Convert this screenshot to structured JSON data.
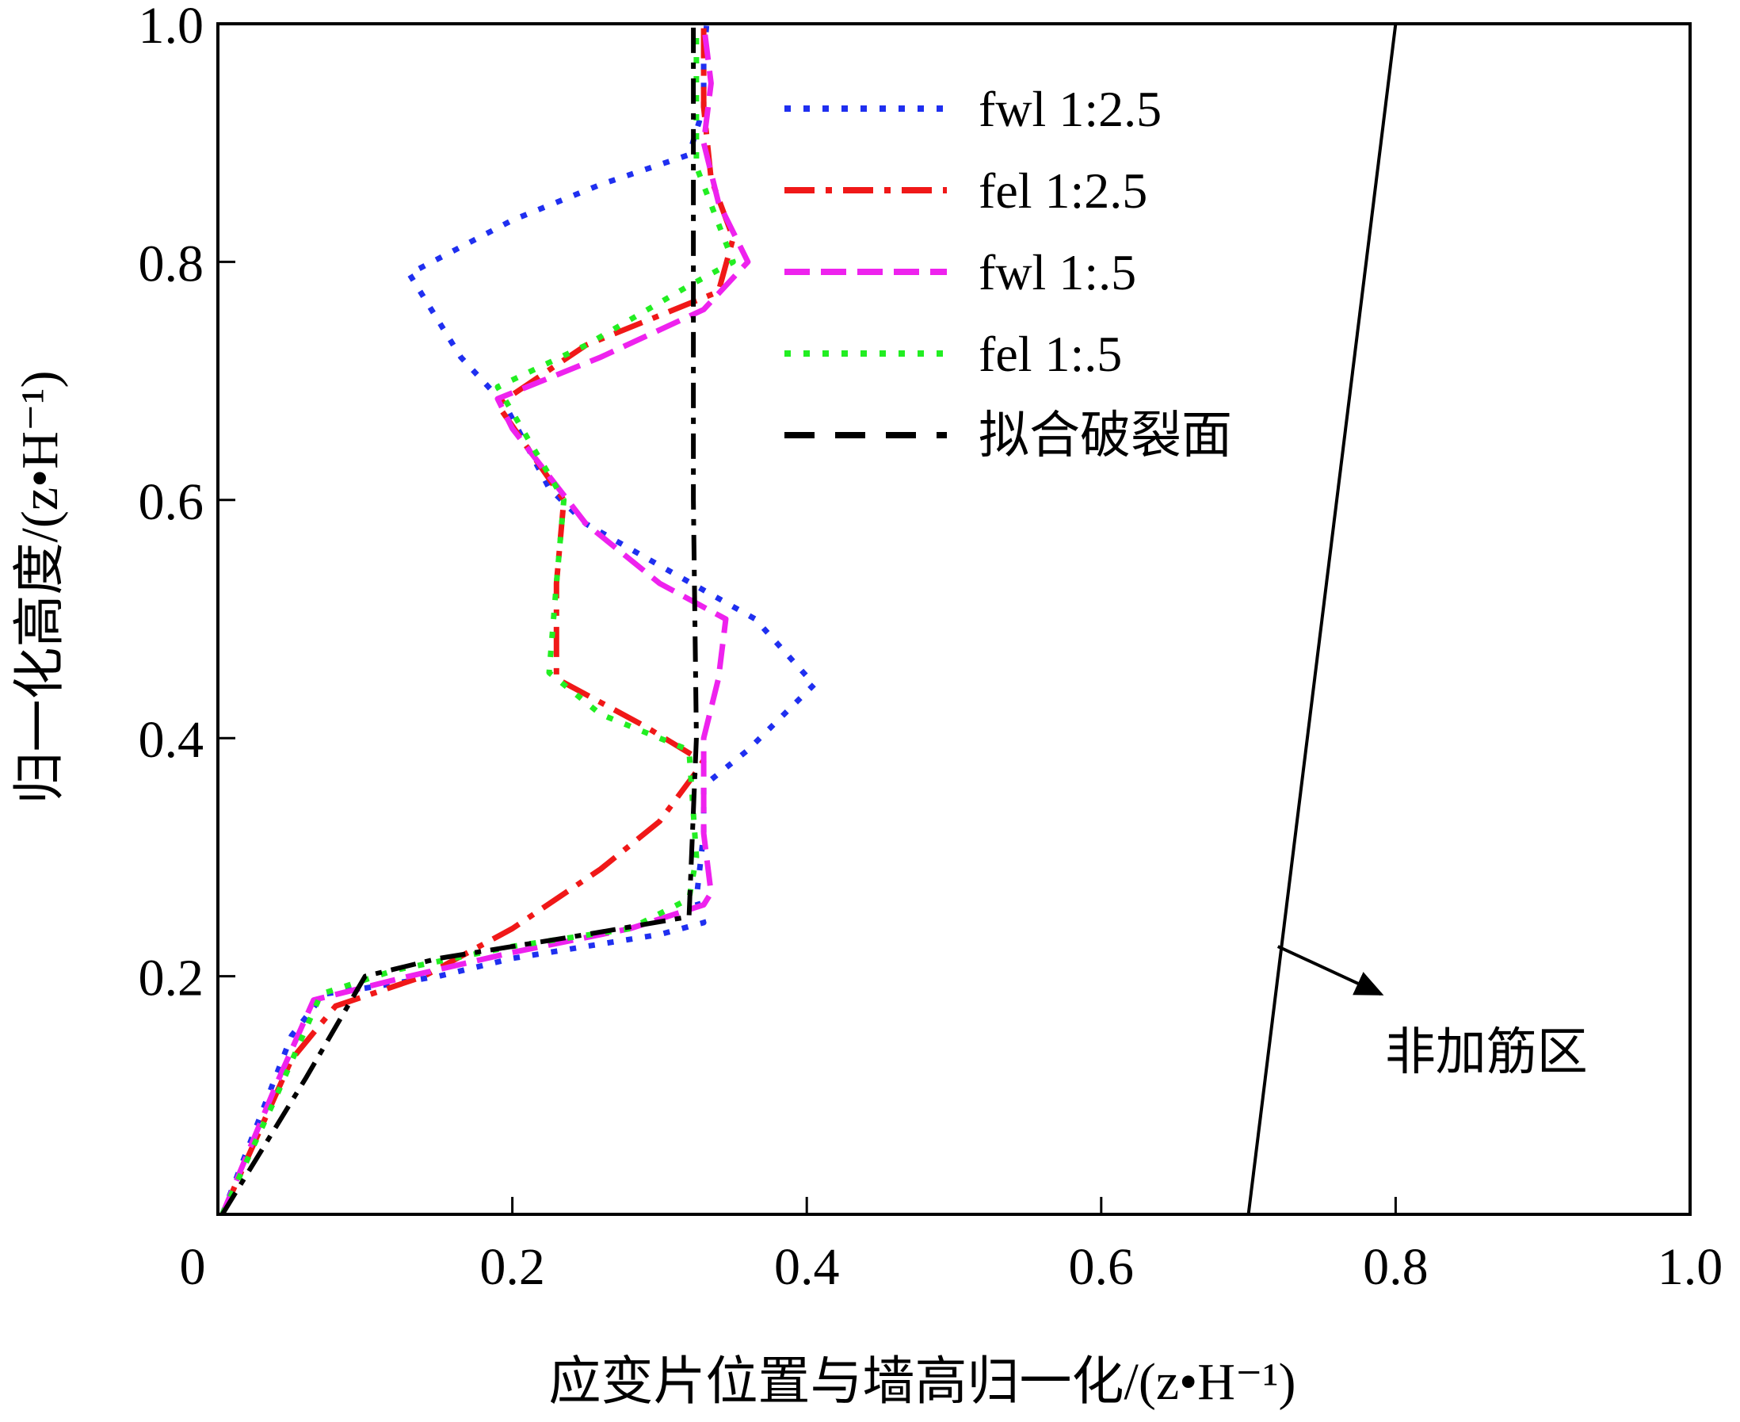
{
  "chart_data": {
    "type": "line",
    "title": "",
    "xlabel": "应变片位置与墙高归一化/(z•H⁻¹)",
    "ylabel": "归一化高度/(z•H⁻¹)",
    "xlim": [
      0,
      1.0
    ],
    "ylim": [
      0,
      1.0
    ],
    "x_ticks": [
      {
        "value": 0,
        "label": "0"
      },
      {
        "value": 0.2,
        "label": "0.2"
      },
      {
        "value": 0.4,
        "label": "0.4"
      },
      {
        "value": 0.6,
        "label": "0.6"
      },
      {
        "value": 0.8,
        "label": "0.8"
      },
      {
        "value": 1.0,
        "label": "1.0"
      }
    ],
    "y_ticks": [
      {
        "value": 0.2,
        "label": "0.2"
      },
      {
        "value": 0.4,
        "label": "0.4"
      },
      {
        "value": 0.6,
        "label": "0.6"
      },
      {
        "value": 0.8,
        "label": "0.8"
      },
      {
        "value": 1.0,
        "label": "1.0"
      }
    ],
    "grid": false,
    "legend_position": "top-center",
    "series": [
      {
        "name": "fwl 1:2.5",
        "color": "#1f2ff0",
        "dash": "dotted",
        "points": [
          [
            0.003,
            0.0
          ],
          [
            0.05,
            0.15
          ],
          [
            0.072,
            0.185
          ],
          [
            0.1,
            0.19
          ],
          [
            0.15,
            0.2
          ],
          [
            0.2,
            0.215
          ],
          [
            0.25,
            0.225
          ],
          [
            0.3,
            0.235
          ],
          [
            0.33,
            0.245
          ],
          [
            0.325,
            0.265
          ],
          [
            0.33,
            0.32
          ],
          [
            0.33,
            0.36
          ],
          [
            0.36,
            0.39
          ],
          [
            0.405,
            0.445
          ],
          [
            0.365,
            0.5
          ],
          [
            0.3,
            0.545
          ],
          [
            0.25,
            0.58
          ],
          [
            0.225,
            0.61
          ],
          [
            0.195,
            0.68
          ],
          [
            0.165,
            0.72
          ],
          [
            0.13,
            0.79
          ],
          [
            0.2,
            0.835
          ],
          [
            0.26,
            0.865
          ],
          [
            0.32,
            0.89
          ],
          [
            0.33,
            0.93
          ],
          [
            0.33,
            0.97
          ],
          [
            0.332,
            1.0
          ]
        ]
      },
      {
        "name": "fel 1:2.5",
        "color": "#f01818",
        "dash": "dashdot",
        "points": [
          [
            0.003,
            0.0
          ],
          [
            0.05,
            0.13
          ],
          [
            0.08,
            0.175
          ],
          [
            0.14,
            0.2
          ],
          [
            0.2,
            0.24
          ],
          [
            0.26,
            0.29
          ],
          [
            0.3,
            0.33
          ],
          [
            0.33,
            0.38
          ],
          [
            0.29,
            0.41
          ],
          [
            0.23,
            0.45
          ],
          [
            0.23,
            0.53
          ],
          [
            0.235,
            0.6
          ],
          [
            0.19,
            0.68
          ],
          [
            0.25,
            0.73
          ],
          [
            0.34,
            0.775
          ],
          [
            0.35,
            0.82
          ],
          [
            0.335,
            0.87
          ],
          [
            0.33,
            0.93
          ],
          [
            0.33,
            1.0
          ]
        ]
      },
      {
        "name": "fwl 1:.5",
        "color": "#ee22ee",
        "dash": "dashed",
        "points": [
          [
            0.003,
            0.0
          ],
          [
            0.04,
            0.11
          ],
          [
            0.065,
            0.18
          ],
          [
            0.13,
            0.2
          ],
          [
            0.2,
            0.22
          ],
          [
            0.28,
            0.24
          ],
          [
            0.33,
            0.26
          ],
          [
            0.335,
            0.27
          ],
          [
            0.33,
            0.32
          ],
          [
            0.33,
            0.4
          ],
          [
            0.34,
            0.45
          ],
          [
            0.345,
            0.5
          ],
          [
            0.3,
            0.53
          ],
          [
            0.25,
            0.58
          ],
          [
            0.2,
            0.66
          ],
          [
            0.19,
            0.685
          ],
          [
            0.26,
            0.72
          ],
          [
            0.33,
            0.76
          ],
          [
            0.36,
            0.8
          ],
          [
            0.34,
            0.85
          ],
          [
            0.33,
            0.9
          ],
          [
            0.335,
            0.95
          ],
          [
            0.33,
            1.0
          ]
        ]
      },
      {
        "name": "fel 1:.5",
        "color": "#22ee22",
        "dash": "dotted",
        "points": [
          [
            0.003,
            0.0
          ],
          [
            0.04,
            0.1
          ],
          [
            0.07,
            0.185
          ],
          [
            0.12,
            0.205
          ],
          [
            0.2,
            0.225
          ],
          [
            0.28,
            0.24
          ],
          [
            0.32,
            0.265
          ],
          [
            0.325,
            0.3
          ],
          [
            0.32,
            0.39
          ],
          [
            0.26,
            0.42
          ],
          [
            0.225,
            0.455
          ],
          [
            0.23,
            0.53
          ],
          [
            0.235,
            0.6
          ],
          [
            0.19,
            0.695
          ],
          [
            0.25,
            0.73
          ],
          [
            0.32,
            0.78
          ],
          [
            0.35,
            0.8
          ],
          [
            0.325,
            0.88
          ],
          [
            0.325,
            0.95
          ],
          [
            0.325,
            1.0
          ]
        ]
      },
      {
        "name": "拟合破裂面",
        "color": "#000000",
        "dash": "dashdot-black",
        "points": [
          [
            0.003,
            0.0
          ],
          [
            0.06,
            0.115
          ],
          [
            0.1,
            0.2
          ],
          [
            0.15,
            0.215
          ],
          [
            0.25,
            0.235
          ],
          [
            0.32,
            0.25
          ],
          [
            0.325,
            0.4
          ],
          [
            0.323,
            0.6
          ],
          [
            0.323,
            0.8
          ],
          [
            0.323,
            1.0
          ]
        ]
      }
    ],
    "reference_line": {
      "points": [
        [
          0.7,
          0.0
        ],
        [
          0.8,
          1.0
        ]
      ],
      "color": "#000000"
    },
    "annotation": {
      "text": "非加筋区",
      "target": [
        0.72,
        0.225
      ],
      "arrow_end": [
        0.79,
        0.185
      ]
    }
  }
}
